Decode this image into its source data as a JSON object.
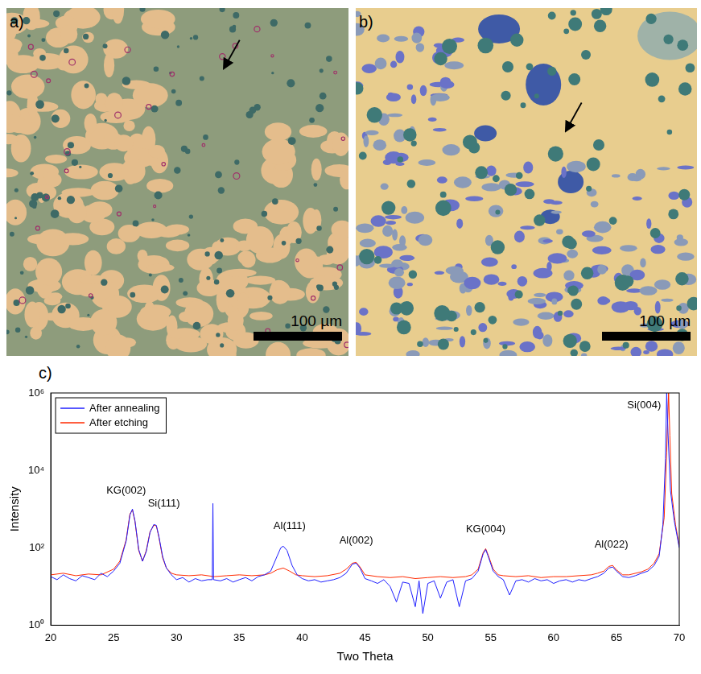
{
  "panels": [
    {
      "label": "a)",
      "scale_bar": "100 µm"
    },
    {
      "label": "b)",
      "scale_bar": "100 µm"
    }
  ],
  "chart_data": {
    "type": "line",
    "panel_label": "c)",
    "x_label": "Two Theta",
    "y_label": "Intensity",
    "log": "y",
    "grid": false,
    "legend": "upper left",
    "xlim": [
      20,
      70
    ],
    "xticks": [
      20,
      25,
      30,
      35,
      40,
      45,
      50,
      55,
      60,
      65,
      70
    ],
    "ylim": [
      1,
      1000000
    ],
    "yticks": [
      {
        "value": 1,
        "label": "10⁰"
      },
      {
        "value": 100,
        "label": "10²"
      },
      {
        "value": 10000,
        "label": "10⁴"
      },
      {
        "value": 1000000,
        "label": "10⁶"
      }
    ],
    "series": [
      {
        "name": "After annealing",
        "color": "#1f1fff",
        "x": [
          20,
          20.5,
          21,
          21.5,
          22,
          22.5,
          23,
          23.5,
          24,
          24.5,
          25,
          25.5,
          26,
          26.3,
          26.5,
          26.7,
          27,
          27.3,
          27.6,
          27.9,
          28.2,
          28.4,
          28.6,
          28.9,
          29.2,
          29.6,
          30,
          30.5,
          31,
          31.5,
          32,
          32.5,
          32.85,
          32.9,
          32.95,
          33.5,
          34,
          34.5,
          35,
          35.5,
          36,
          36.5,
          37,
          37.5,
          38,
          38.3,
          38.5,
          38.8,
          39.2,
          39.6,
          40,
          40.5,
          41,
          41.5,
          42,
          42.5,
          43,
          43.5,
          44,
          44.3,
          44.6,
          45,
          45.5,
          46,
          46.5,
          47,
          47.5,
          48,
          48.5,
          49,
          49.3,
          49.6,
          50,
          50.5,
          51,
          51.5,
          52,
          52.5,
          53,
          53.5,
          54,
          54.4,
          54.6,
          54.8,
          55.2,
          55.6,
          56,
          56.5,
          57,
          57.5,
          58,
          58.5,
          59,
          59.5,
          60,
          60.5,
          61,
          61.5,
          62,
          62.5,
          63,
          63.5,
          64,
          64.4,
          64.7,
          65,
          65.5,
          66,
          66.5,
          67,
          67.5,
          68,
          68.4,
          68.7,
          68.9,
          69,
          69.1,
          69.3,
          69.6,
          70
        ],
        "values": [
          18,
          15,
          20,
          16,
          14,
          19,
          17,
          15,
          22,
          18,
          25,
          40,
          150,
          700,
          1000,
          500,
          90,
          45,
          80,
          250,
          400,
          380,
          200,
          60,
          30,
          20,
          15,
          17,
          13,
          16,
          14,
          15,
          15,
          1400,
          15,
          14,
          16,
          13,
          15,
          17,
          14,
          18,
          20,
          25,
          60,
          100,
          110,
          85,
          35,
          20,
          16,
          14,
          15,
          13,
          14,
          15,
          17,
          22,
          38,
          40,
          30,
          16,
          14,
          12,
          15,
          10,
          4,
          13,
          12,
          3,
          14,
          2,
          12,
          14,
          5,
          13,
          15,
          3,
          14,
          16,
          25,
          70,
          90,
          60,
          25,
          18,
          15,
          6,
          14,
          15,
          13,
          16,
          14,
          15,
          12,
          14,
          15,
          13,
          15,
          14,
          16,
          18,
          22,
          30,
          32,
          25,
          18,
          17,
          19,
          22,
          25,
          35,
          60,
          400,
          20000,
          1000000,
          100000,
          3000,
          500,
          100
        ]
      },
      {
        "name": "After etching",
        "color": "#ff2a00",
        "x": [
          20,
          21,
          22,
          23,
          24,
          25,
          25.5,
          26,
          26.3,
          26.5,
          26.7,
          27,
          27.3,
          27.6,
          27.9,
          28.2,
          28.4,
          28.6,
          28.9,
          29.2,
          29.6,
          30,
          31,
          32,
          33,
          34,
          35,
          36,
          37,
          37.5,
          38,
          38.5,
          39,
          39.5,
          40,
          41,
          42,
          43,
          43.5,
          44,
          44.3,
          44.6,
          45,
          46,
          47,
          48,
          49,
          50,
          51,
          52,
          53,
          53.5,
          54,
          54.4,
          54.6,
          54.8,
          55.2,
          55.6,
          56,
          57,
          58,
          59,
          60,
          61,
          62,
          63,
          63.5,
          64,
          64.4,
          64.7,
          65,
          65.5,
          66,
          67,
          67.5,
          68,
          68.4,
          68.8,
          69,
          69.15,
          69.25,
          69.4,
          69.7,
          70
        ],
        "values": [
          20,
          22,
          19,
          21,
          20,
          28,
          45,
          160,
          750,
          950,
          480,
          85,
          45,
          85,
          260,
          380,
          370,
          190,
          55,
          30,
          22,
          20,
          19,
          20,
          18,
          19,
          20,
          19,
          20,
          22,
          27,
          30,
          25,
          20,
          19,
          18,
          19,
          22,
          28,
          40,
          42,
          32,
          20,
          18,
          17,
          18,
          16,
          17,
          18,
          17,
          18,
          20,
          28,
          75,
          95,
          65,
          28,
          20,
          19,
          18,
          19,
          17,
          18,
          18,
          19,
          20,
          22,
          25,
          33,
          35,
          27,
          20,
          20,
          24,
          28,
          40,
          70,
          600,
          30000,
          1000000,
          80000,
          2500,
          400,
          110
        ]
      }
    ],
    "annotations": [
      {
        "text": "KG(002)",
        "x": 26.0,
        "y": 2200
      },
      {
        "text": "Si(111)",
        "x": 29.0,
        "y": 1000
      },
      {
        "text": "Al(111)",
        "x": 39.0,
        "y": 260
      },
      {
        "text": "Al(002)",
        "x": 44.3,
        "y": 110
      },
      {
        "text": "KG(004)",
        "x": 54.6,
        "y": 220
      },
      {
        "text": "Al(022)",
        "x": 64.6,
        "y": 90
      },
      {
        "text": "Si(004)",
        "x": 67.2,
        "y": 350000
      }
    ]
  }
}
